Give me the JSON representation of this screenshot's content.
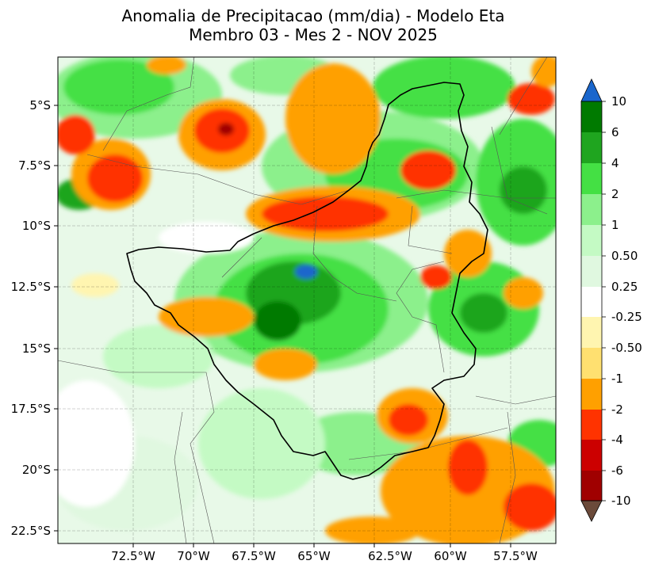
{
  "title": {
    "line1": "Anomalia de Precipitacao (mm/dia) - Modelo Eta",
    "line2": "Membro 03 - Mes 2 - NOV 2025"
  },
  "lat_labels": [
    "5°S",
    "7.5°S",
    "10°S",
    "12.5°S",
    "15°S",
    "17.5°S",
    "20°S",
    "22.5°S"
  ],
  "lon_labels": [
    "72.5°W",
    "70°W",
    "67.5°W",
    "65°W",
    "62.5°W",
    "60°W",
    "57.5°W"
  ],
  "colorbar": {
    "labels": [
      "10",
      "6",
      "4",
      "2",
      "1",
      "0.50",
      "0.25",
      "-0.25",
      "-0.50",
      "-1",
      "-2",
      "-4",
      "-6",
      "-10"
    ],
    "colors": [
      "#1a66cc",
      "#007a00",
      "#1fa51f",
      "#44e044",
      "#8cf08c",
      "#c4fac4",
      "#e0f8e0",
      "#ffffff",
      "#fff5b0",
      "#ffe070",
      "#ffa000",
      "#ff3300",
      "#cc0000",
      "#a00000",
      "#6b4a3a"
    ]
  },
  "map": {
    "background_color": "#e6f8e6"
  }
}
